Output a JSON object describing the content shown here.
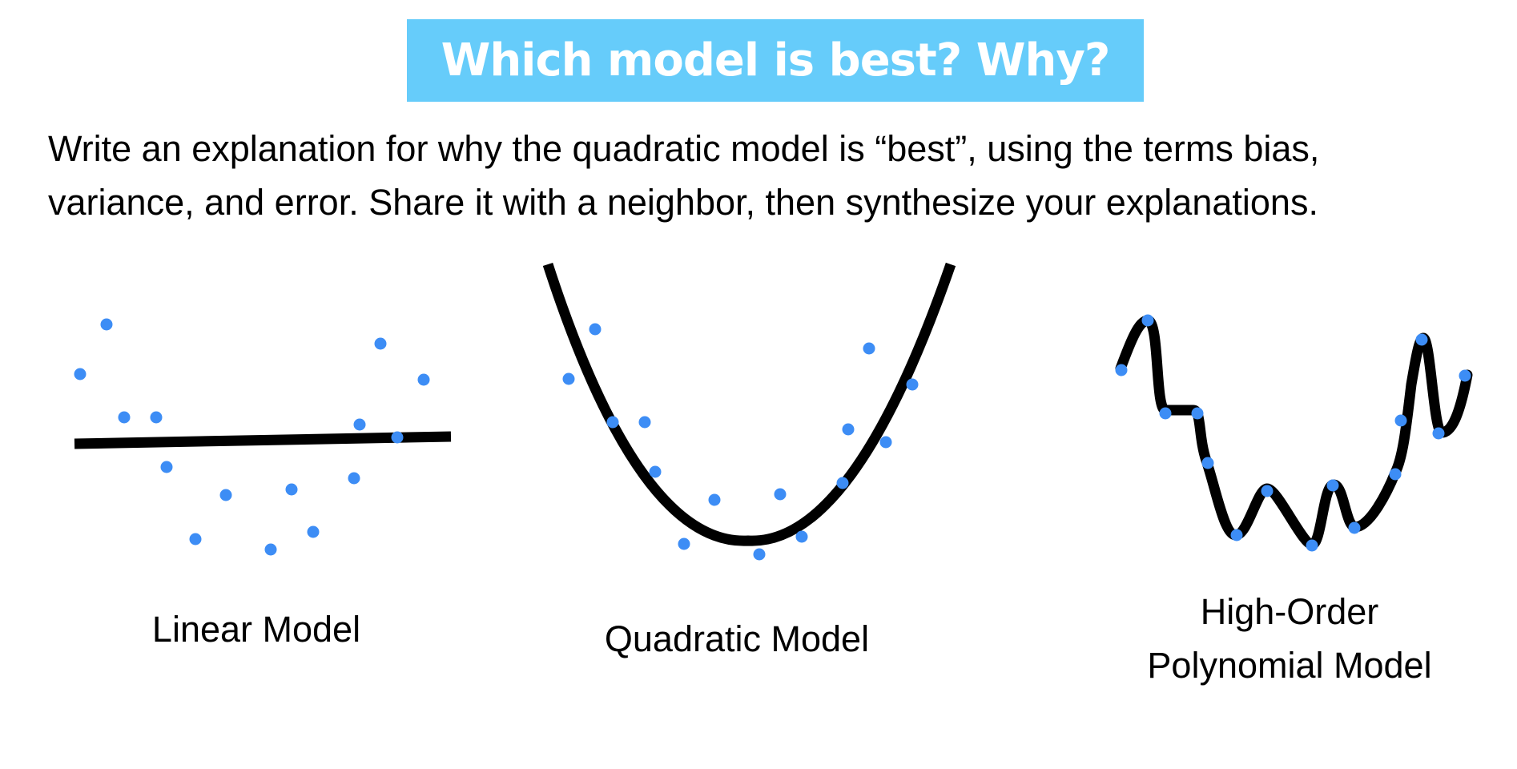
{
  "title": "Which model is best? Why?",
  "instructions": {
    "line1": "Write an explanation for why the quadratic model is “best”, using the terms bias,",
    "line2": "variance, and error. Share it with a neighbor, then synthesize your explanations."
  },
  "colors": {
    "banner": "#66ccfa",
    "banner_text": "#ffffff",
    "points": "#3d8df5",
    "curve": "#000000"
  },
  "models": [
    {
      "label_lines": [
        "Linear Model"
      ]
    },
    {
      "label_lines": [
        "Quadratic Model"
      ]
    },
    {
      "label_lines": [
        "High-Order",
        "Polynomial Model"
      ]
    }
  ]
}
